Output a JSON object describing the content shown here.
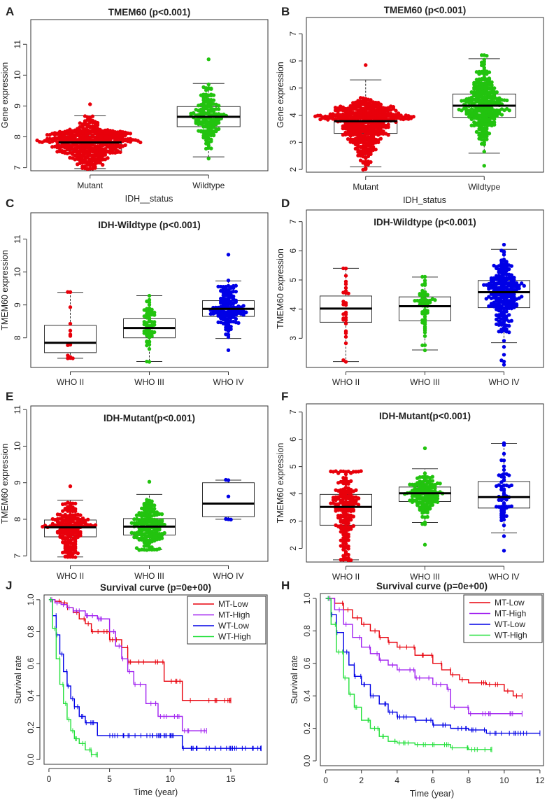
{
  "chart_data": [
    {
      "id": "A",
      "type": "scatter",
      "subtype": "beeswarm-boxplot",
      "title": "TMEM60 (p<0.001)",
      "xlabel": "IDH__status",
      "ylabel": "Gene expression",
      "ylim": [
        6.9,
        11.8
      ],
      "yticks": [
        7,
        8,
        9,
        10,
        11
      ],
      "categories": [
        "Mutant",
        "Wildtype"
      ],
      "colors": [
        "#e8000b",
        "#22c30f"
      ],
      "boxes": [
        {
          "min": 6.97,
          "q1": 7.55,
          "median": 7.82,
          "q3": 8.03,
          "max": 8.68,
          "n": 420,
          "lo": 6.97,
          "hi": 9.06
        },
        {
          "min": 7.35,
          "q1": 8.33,
          "median": 8.65,
          "q3": 8.98,
          "max": 9.73,
          "n": 170,
          "lo": 7.3,
          "hi": 10.52
        }
      ]
    },
    {
      "id": "B",
      "type": "scatter",
      "subtype": "beeswarm-boxplot",
      "title": "TMEM60 (p<0.001)",
      "xlabel": "IDH_status",
      "ylabel": "Gene expression",
      "ylim": [
        1.9,
        7.6
      ],
      "yticks": [
        2,
        3,
        4,
        5,
        6,
        7
      ],
      "categories": [
        "Mutant",
        "Wildtype"
      ],
      "colors": [
        "#e8000b",
        "#22c30f"
      ],
      "boxes": [
        {
          "min": 2.1,
          "q1": 3.33,
          "median": 3.78,
          "q3": 4.05,
          "max": 5.3,
          "n": 430,
          "lo": 2.0,
          "hi": 5.85
        },
        {
          "min": 2.6,
          "q1": 3.92,
          "median": 4.35,
          "q3": 4.78,
          "max": 6.08,
          "n": 290,
          "lo": 2.15,
          "hi": 6.2
        }
      ]
    },
    {
      "id": "C",
      "type": "scatter",
      "subtype": "beeswarm-boxplot",
      "title": "IDH-Wildtype (p<0.001)",
      "xlabel": "",
      "ylabel": "TMEM60 expression",
      "ylim": [
        7.1,
        11.8
      ],
      "yticks": [
        8,
        9,
        10,
        11
      ],
      "categories": [
        "WHO II",
        "WHO III",
        "WHO IV"
      ],
      "colors": [
        "#e8000b",
        "#22c30f",
        "#0000e6"
      ],
      "boxes": [
        {
          "min": 7.38,
          "q1": 7.55,
          "median": 7.85,
          "q3": 8.38,
          "max": 9.38,
          "n": 14,
          "lo": 7.38,
          "hi": 9.38
        },
        {
          "min": 7.28,
          "q1": 8.0,
          "median": 8.3,
          "q3": 8.58,
          "max": 9.28,
          "n": 60,
          "lo": 7.28,
          "hi": 9.28
        },
        {
          "min": 7.98,
          "q1": 8.65,
          "median": 8.88,
          "q3": 9.13,
          "max": 9.73,
          "n": 150,
          "lo": 7.62,
          "hi": 10.52
        }
      ]
    },
    {
      "id": "D",
      "type": "scatter",
      "subtype": "beeswarm-boxplot",
      "title": "IDH-Wildtype (p<0.001)",
      "xlabel": "",
      "ylabel": "TMEM60 expression",
      "ylim": [
        2.0,
        7.4
      ],
      "yticks": [
        3,
        4,
        5,
        6,
        7
      ],
      "categories": [
        "WHO II",
        "WHO III",
        "WHO IV"
      ],
      "colors": [
        "#e8000b",
        "#22c30f",
        "#0000e6"
      ],
      "boxes": [
        {
          "min": 2.2,
          "q1": 3.55,
          "median": 4.02,
          "q3": 4.45,
          "max": 5.4,
          "n": 28,
          "lo": 2.2,
          "hi": 5.4
        },
        {
          "min": 2.6,
          "q1": 3.6,
          "median": 4.1,
          "q3": 4.42,
          "max": 5.1,
          "n": 60,
          "lo": 2.6,
          "hi": 5.1
        },
        {
          "min": 2.85,
          "q1": 4.05,
          "median": 4.58,
          "q3": 4.98,
          "max": 6.05,
          "n": 250,
          "lo": 2.1,
          "hi": 6.2
        }
      ]
    },
    {
      "id": "E",
      "type": "scatter",
      "subtype": "beeswarm-boxplot",
      "title": "IDH-Mutant(p<0.001)",
      "xlabel": "",
      "ylabel": "TMEM60 expression",
      "ylim": [
        6.85,
        11.1
      ],
      "yticks": [
        7,
        8,
        9,
        10,
        11
      ],
      "categories": [
        "WHO II",
        "WHO III",
        "WHO IV"
      ],
      "colors": [
        "#e8000b",
        "#22c30f",
        "#0000e6"
      ],
      "boxes": [
        {
          "min": 6.97,
          "q1": 7.52,
          "median": 7.78,
          "q3": 7.98,
          "max": 8.52,
          "n": 190,
          "lo": 6.97,
          "hi": 8.9
        },
        {
          "min": 7.17,
          "q1": 7.57,
          "median": 7.8,
          "q3": 8.02,
          "max": 8.68,
          "n": 180,
          "lo": 7.17,
          "hi": 9.02
        },
        {
          "min": 8.0,
          "q1": 8.07,
          "median": 8.43,
          "q3": 9.0,
          "max": 9.07,
          "n": 6,
          "lo": 8.0,
          "hi": 9.07
        }
      ]
    },
    {
      "id": "F",
      "type": "scatter",
      "subtype": "beeswarm-boxplot",
      "title": "IDH-Mutant(p<0.001)",
      "xlabel": "",
      "ylabel": "TMEM60 expression",
      "ylim": [
        1.5,
        7.3
      ],
      "yticks": [
        2,
        3,
        4,
        5,
        6,
        7
      ],
      "categories": [
        "WHO II",
        "WHO III",
        "WHO IV"
      ],
      "colors": [
        "#e8000b",
        "#22c30f",
        "#0000e6"
      ],
      "boxes": [
        {
          "min": 1.58,
          "q1": 2.85,
          "median": 3.52,
          "q3": 3.98,
          "max": 4.82,
          "n": 190,
          "lo": 1.58,
          "hi": 4.82
        },
        {
          "min": 2.95,
          "q1": 3.72,
          "median": 4.02,
          "q3": 4.25,
          "max": 4.92,
          "n": 150,
          "lo": 2.15,
          "hi": 5.68
        },
        {
          "min": 2.57,
          "q1": 3.48,
          "median": 3.88,
          "q3": 4.45,
          "max": 5.85,
          "n": 65,
          "lo": 1.9,
          "hi": 5.85
        }
      ]
    },
    {
      "id": "J",
      "type": "line",
      "subtype": "kaplan-meier",
      "title": "Survival curve (p=0e+00)",
      "xlabel": "Time (year)",
      "ylabel": "Survival rate",
      "xlim": [
        -0.4,
        18.0
      ],
      "ylim": [
        -0.03,
        1.03
      ],
      "xticks": [
        0,
        5,
        10,
        15
      ],
      "yticks": [
        0.0,
        0.2,
        0.4,
        0.6,
        0.8,
        1.0
      ],
      "legend": {
        "position": "top-right"
      },
      "series": [
        {
          "name": "MT-Low",
          "color": "#e8000b",
          "x": [
            0,
            0.5,
            1,
            1.5,
            2,
            2.5,
            3,
            3.5,
            4,
            5,
            6,
            6.5,
            7.5,
            9,
            9.5,
            11,
            15
          ],
          "y": [
            1.0,
            0.99,
            0.98,
            0.95,
            0.92,
            0.88,
            0.85,
            0.8,
            0.8,
            0.75,
            0.7,
            0.61,
            0.61,
            0.61,
            0.49,
            0.37,
            0.37
          ]
        },
        {
          "name": "MT-High",
          "color": "#a020f0",
          "x": [
            0,
            0.5,
            1,
            1.5,
            2,
            3,
            4,
            5,
            5.5,
            6,
            6.5,
            7,
            7.5,
            8,
            9,
            10,
            11,
            13
          ],
          "y": [
            1.0,
            0.98,
            0.97,
            0.95,
            0.93,
            0.9,
            0.88,
            0.8,
            0.71,
            0.63,
            0.55,
            0.47,
            0.47,
            0.35,
            0.27,
            0.27,
            0.18,
            0.18
          ]
        },
        {
          "name": "WT-Low",
          "color": "#0000e6",
          "x": [
            0,
            0.3,
            0.6,
            0.9,
            1.2,
            1.5,
            1.8,
            2.1,
            2.5,
            3,
            3.5,
            4,
            11,
            17.5
          ],
          "y": [
            1.0,
            0.9,
            0.78,
            0.66,
            0.55,
            0.46,
            0.38,
            0.33,
            0.27,
            0.23,
            0.23,
            0.15,
            0.07,
            0.07
          ]
        },
        {
          "name": "WT-High",
          "color": "#22e03a",
          "x": [
            0,
            0.3,
            0.6,
            0.9,
            1.2,
            1.5,
            1.8,
            2.1,
            2.5,
            3,
            3.5,
            4
          ],
          "y": [
            1.0,
            0.82,
            0.63,
            0.47,
            0.35,
            0.25,
            0.18,
            0.13,
            0.1,
            0.06,
            0.03,
            0.03
          ]
        }
      ]
    },
    {
      "id": "H",
      "type": "line",
      "subtype": "kaplan-meier",
      "title": "Survival curve (p=0e+00)",
      "xlabel": "Time (year)",
      "ylabel": "Survival rate",
      "xlim": [
        -0.3,
        12.2
      ],
      "ylim": [
        -0.03,
        1.03
      ],
      "xticks": [
        0,
        2,
        4,
        6,
        8,
        10,
        12
      ],
      "yticks": [
        0.0,
        0.2,
        0.4,
        0.6,
        0.8,
        1.0
      ],
      "legend": {
        "position": "top-right"
      },
      "series": [
        {
          "name": "MT-Low",
          "color": "#e8000b",
          "x": [
            0,
            0.5,
            1,
            1.5,
            2,
            2.5,
            3,
            3.5,
            4,
            5,
            6,
            6.5,
            7,
            7.5,
            8,
            9,
            10,
            10.5,
            11
          ],
          "y": [
            1.0,
            0.97,
            0.93,
            0.88,
            0.84,
            0.8,
            0.76,
            0.73,
            0.7,
            0.65,
            0.6,
            0.56,
            0.53,
            0.5,
            0.48,
            0.47,
            0.43,
            0.4,
            0.4
          ]
        },
        {
          "name": "MT-High",
          "color": "#a020f0",
          "x": [
            0,
            0.5,
            1,
            1.5,
            2,
            2.5,
            3,
            3.5,
            4,
            5,
            6,
            6.8,
            7,
            7.5,
            8,
            9,
            10,
            11
          ],
          "y": [
            1.0,
            0.93,
            0.84,
            0.76,
            0.7,
            0.66,
            0.62,
            0.59,
            0.56,
            0.51,
            0.47,
            0.44,
            0.33,
            0.33,
            0.29,
            0.29,
            0.29,
            0.29
          ]
        },
        {
          "name": "WT-Low",
          "color": "#0000e6",
          "x": [
            0,
            0.3,
            0.6,
            1,
            1.3,
            1.6,
            2,
            2.5,
            3,
            3.5,
            4,
            5,
            6,
            7,
            8,
            9,
            10,
            12
          ],
          "y": [
            1.0,
            0.9,
            0.79,
            0.67,
            0.59,
            0.52,
            0.47,
            0.4,
            0.35,
            0.3,
            0.27,
            0.25,
            0.22,
            0.2,
            0.19,
            0.17,
            0.17,
            0.17
          ]
        },
        {
          "name": "WT-High",
          "color": "#22e03a",
          "x": [
            0,
            0.3,
            0.6,
            1,
            1.3,
            1.6,
            2,
            2.5,
            3,
            3.5,
            4,
            5,
            6,
            7,
            8,
            9,
            9.3
          ],
          "y": [
            1.0,
            0.84,
            0.67,
            0.51,
            0.41,
            0.33,
            0.25,
            0.2,
            0.15,
            0.12,
            0.11,
            0.1,
            0.1,
            0.08,
            0.07,
            0.07,
            0.07
          ]
        }
      ]
    }
  ]
}
